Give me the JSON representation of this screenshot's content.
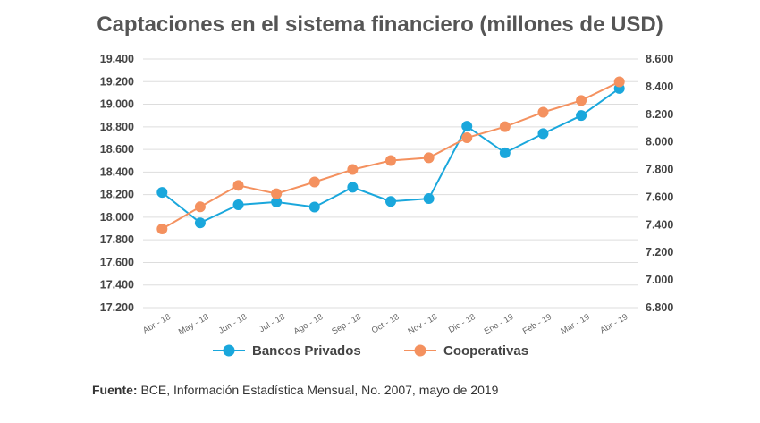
{
  "chart_data": {
    "type": "line",
    "title": "Captaciones en el sistema financiero (millones de USD)",
    "categories": [
      "Abr - 18",
      "May - 18",
      "Jun - 18",
      "Jul - 18",
      "Ago - 18",
      "Sep - 18",
      "Oct - 18",
      "Nov - 18",
      "Dic - 18",
      "Ene - 19",
      "Feb - 19",
      "Mar - 19",
      "Abr - 19"
    ],
    "y_left": {
      "ylim": [
        17200,
        19400
      ],
      "ticks": [
        17200,
        17400,
        17600,
        17800,
        18000,
        18200,
        18400,
        18600,
        18800,
        19000,
        19200,
        19400
      ],
      "tick_labels": [
        "17.200",
        "17.400",
        "17.600",
        "17.800",
        "18.000",
        "18.200",
        "18.400",
        "18.600",
        "18.800",
        "19.000",
        "19.200",
        "19.400"
      ]
    },
    "y_right": {
      "ylim": [
        6800,
        8600
      ],
      "ticks": [
        6800,
        7000,
        7200,
        7400,
        7600,
        7800,
        8000,
        8200,
        8400,
        8600
      ],
      "tick_labels": [
        "6.800",
        "7.000",
        "7.200",
        "7.400",
        "7.600",
        "7.800",
        "8.000",
        "8.200",
        "8.400",
        "8.600"
      ]
    },
    "series": [
      {
        "name": "Bancos Privados",
        "axis": "left",
        "color": "#1aa7dc",
        "values": [
          18220,
          17950,
          18110,
          18135,
          18090,
          18265,
          18140,
          18165,
          18805,
          18570,
          18740,
          18900,
          19140
        ]
      },
      {
        "name": "Cooperativas",
        "axis": "right",
        "color": "#f4915f",
        "values": [
          7370,
          7530,
          7685,
          7625,
          7710,
          7800,
          7865,
          7885,
          8030,
          8110,
          8215,
          8300,
          8435
        ]
      }
    ],
    "legend_position": "bottom"
  },
  "source": {
    "label": "Fuente:",
    "text": "BCE, Información Estadística Mensual, No. 2007, mayo de 2019"
  }
}
